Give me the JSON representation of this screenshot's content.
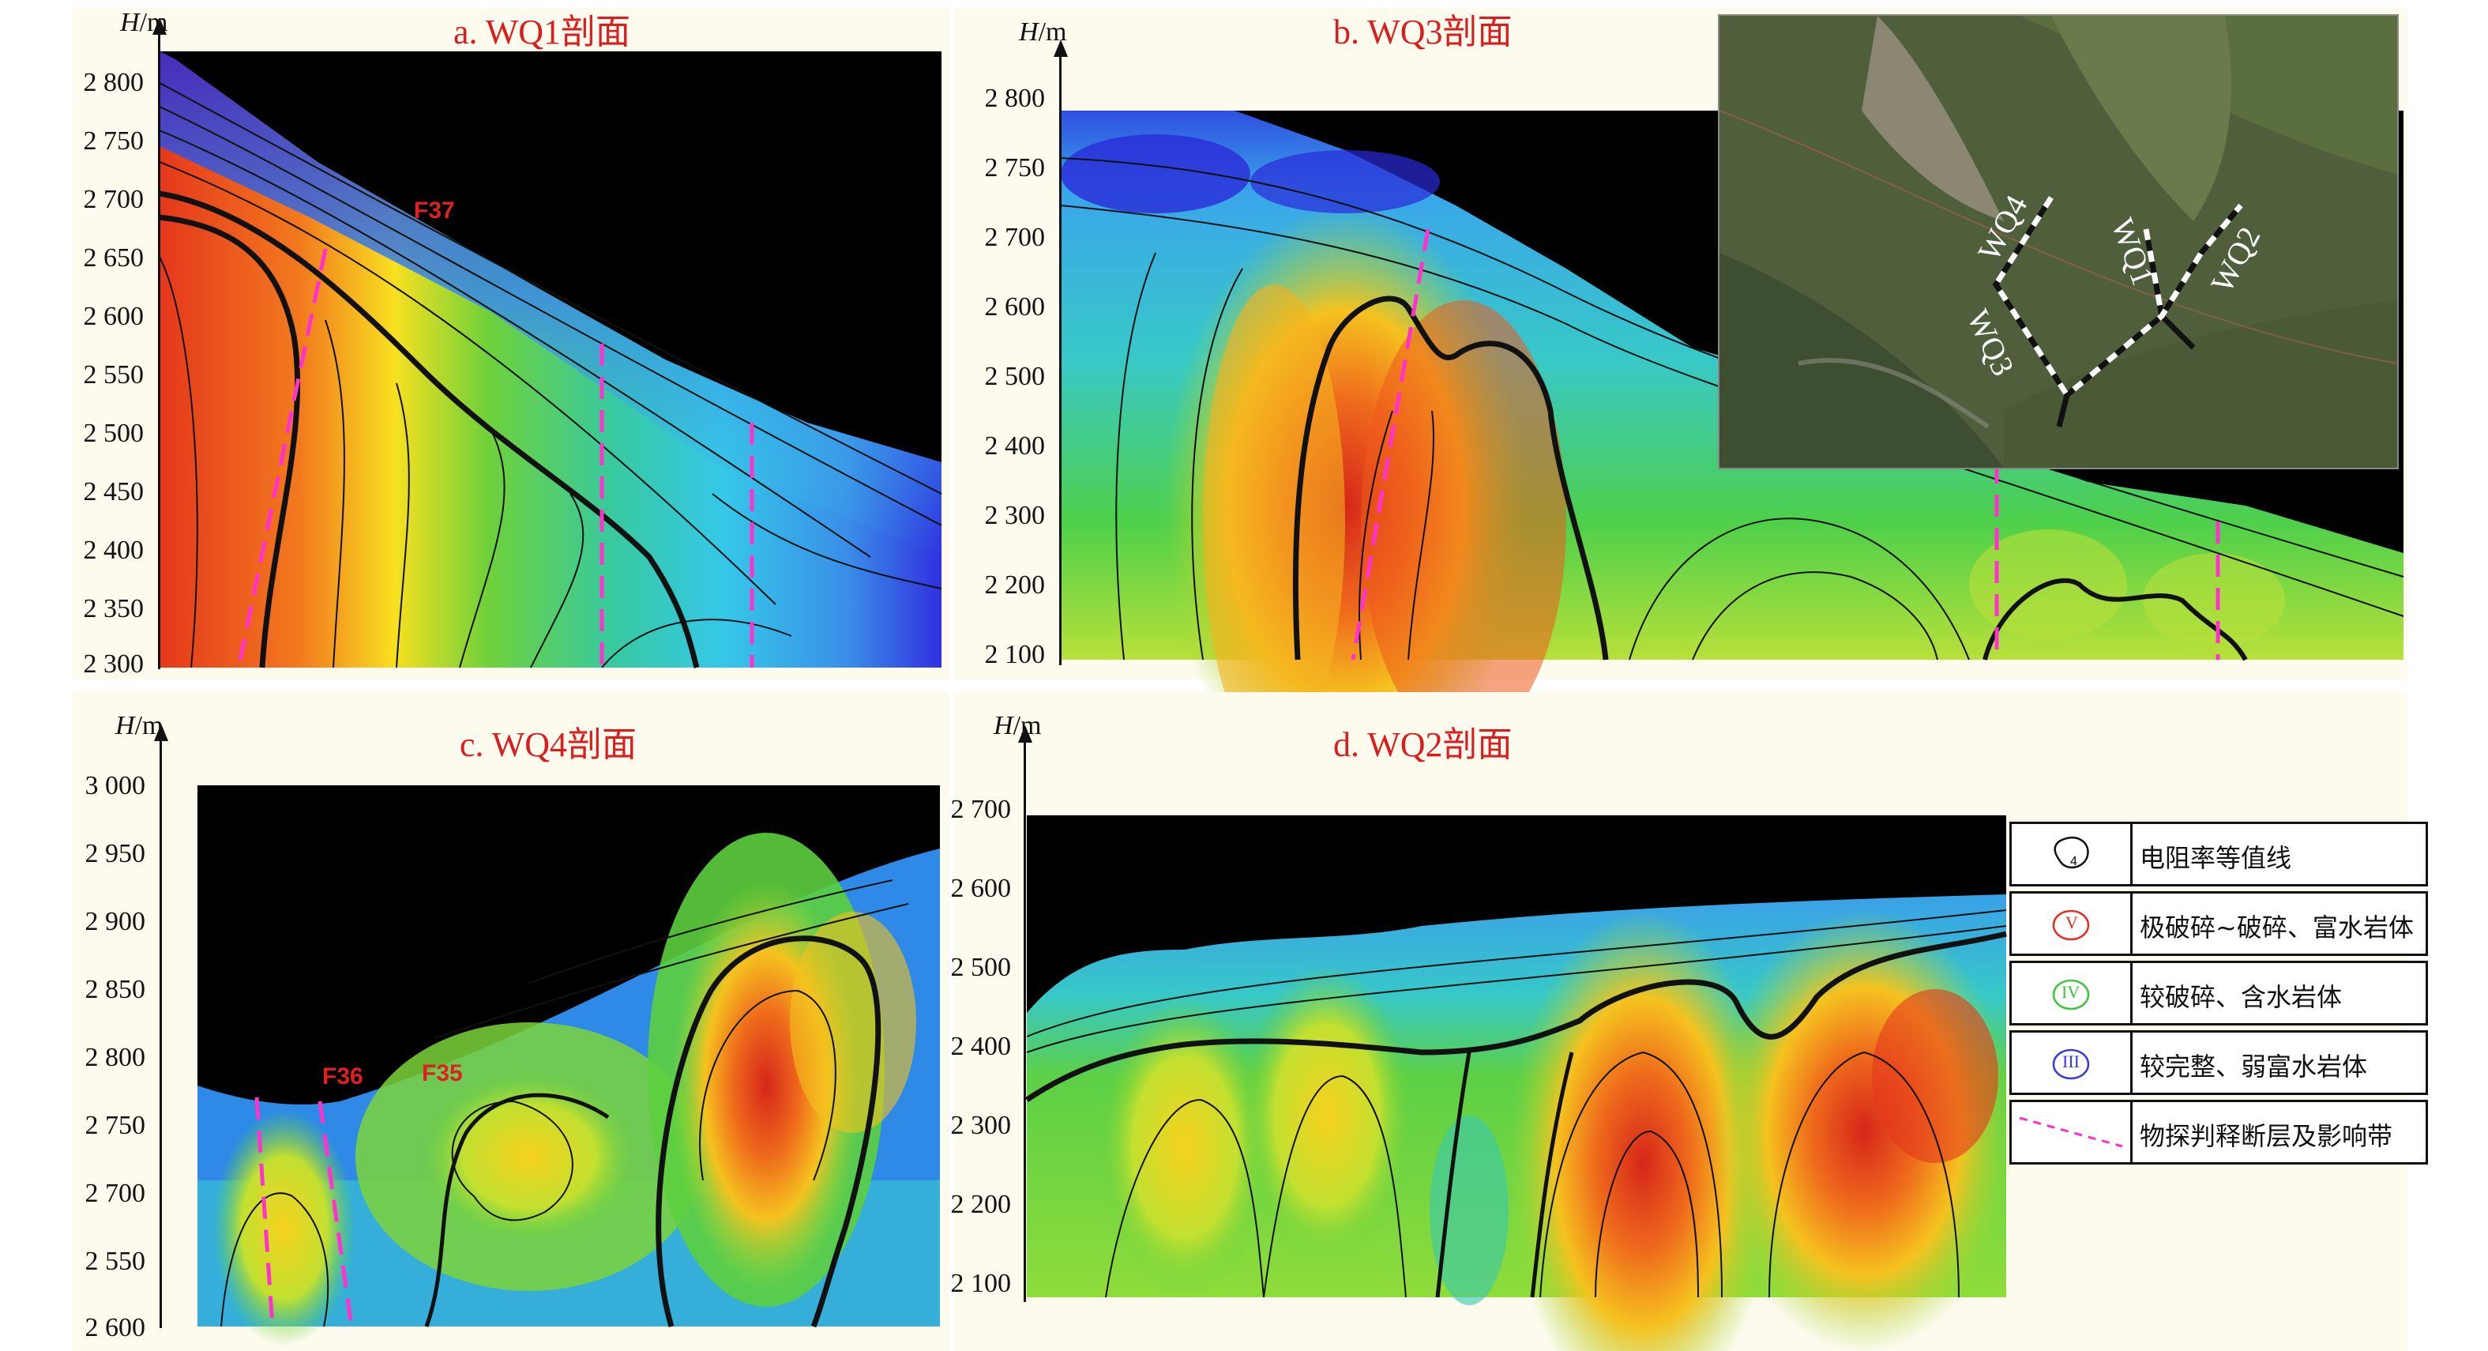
{
  "panels": [
    {
      "id": "a",
      "title": "a. WQ1剖面",
      "axis_label_italic": "H",
      "axis_label_unit": "/m",
      "ticks": [
        "2 800",
        "2 750",
        "2 700",
        "2 650",
        "2 600",
        "2 550",
        "2 500",
        "2 450",
        "2 400",
        "2 350",
        "2 300"
      ],
      "faults": [
        "F37"
      ]
    },
    {
      "id": "b",
      "title": "b. WQ3剖面",
      "axis_label_italic": "H",
      "axis_label_unit": "/m",
      "ticks": [
        "2 800",
        "2 750",
        "2 700",
        "2 600",
        "2 500",
        "2 400",
        "2 300",
        "2 200",
        "2 100"
      ],
      "faults": []
    },
    {
      "id": "c",
      "title": "c. WQ4剖面",
      "axis_label_italic": "H",
      "axis_label_unit": "/m",
      "ticks": [
        "3 000",
        "2 950",
        "2 900",
        "2 850",
        "2 800",
        "2 750",
        "2 700",
        "2 550",
        "2 600"
      ],
      "faults": [
        "F36",
        "F35"
      ]
    },
    {
      "id": "d",
      "title": "d. WQ2剖面",
      "axis_label_italic": "H",
      "axis_label_unit": "/m",
      "ticks": [
        "2 700",
        "2 600",
        "2 500",
        "2 400",
        "2 300",
        "2 200",
        "2 100"
      ],
      "faults": []
    }
  ],
  "map": {
    "labels": [
      "WQ4",
      "WQ1",
      "WQ2",
      "WQ3"
    ]
  },
  "legend": [
    {
      "symbol": "contour-icon",
      "symbol_text": "",
      "text": "电阻率等值线"
    },
    {
      "symbol": "zone-v-icon",
      "symbol_text": "V",
      "text": "极破碎~破碎、富水岩体",
      "color": "#e03020"
    },
    {
      "symbol": "zone-iv-icon",
      "symbol_text": "IV",
      "text": "较破碎、含水岩体",
      "color": "#3ec43e"
    },
    {
      "symbol": "zone-iii-icon",
      "symbol_text": "III",
      "text": "较完整、弱富水岩体",
      "color": "#3a3ad8"
    },
    {
      "symbol": "fault-line-icon",
      "symbol_text": "",
      "text": "物探判释断层及影响带",
      "color": "#ff33cc"
    }
  ]
}
